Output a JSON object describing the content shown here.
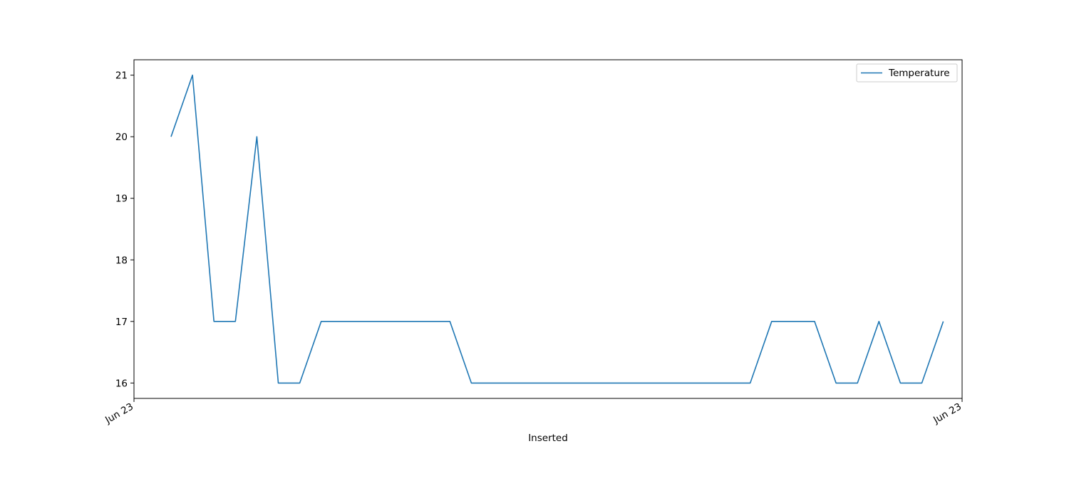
{
  "chart_data": {
    "type": "line",
    "title": "",
    "xlabel": "Inserted",
    "ylabel": "",
    "x_tick_labels": [
      "Jun 23",
      "Jun 23"
    ],
    "y_ticks": [
      16,
      17,
      18,
      19,
      20,
      21
    ],
    "ylim": [
      15.75,
      21.25
    ],
    "grid": false,
    "legend": {
      "position": "top-right",
      "entries": [
        "Temperature"
      ]
    },
    "colors": {
      "series": "#1f77b4",
      "axes": "#000000",
      "background": "#ffffff"
    },
    "series": [
      {
        "name": "Temperature",
        "values": [
          20,
          21,
          17,
          17,
          20,
          16,
          16,
          17,
          17,
          17,
          17,
          17,
          17,
          17,
          16,
          16,
          16,
          16,
          16,
          16,
          16,
          16,
          16,
          16,
          16,
          16,
          16,
          16,
          17,
          17,
          17,
          16,
          16,
          17,
          16,
          16,
          17
        ]
      }
    ]
  }
}
